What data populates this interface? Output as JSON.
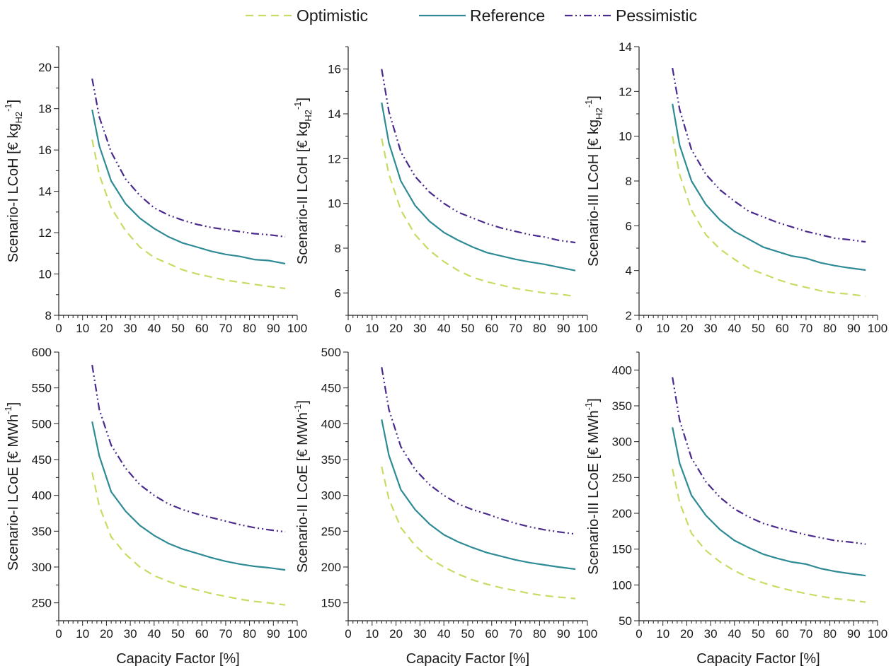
{
  "legend": {
    "position": "top-center",
    "items": [
      {
        "name": "Optimistic",
        "color": "#c6dc62",
        "dash": "dashed"
      },
      {
        "name": "Reference",
        "color": "#2e8b96",
        "dash": "solid"
      },
      {
        "name": "Pessimistic",
        "color": "#4a2a8c",
        "dash": "dash-dot-dot"
      }
    ]
  },
  "x_label_bottom": "Capacity Factor [%]",
  "chart_data": [
    {
      "type": "line",
      "title": "",
      "ylabel": {
        "main": "Scenario-I LCoH [€ kg",
        "sub": "H2",
        "sup": "-1",
        "close": "]"
      },
      "xlabel": "",
      "xlim": [
        0,
        100
      ],
      "xticks": [
        0,
        10,
        20,
        30,
        40,
        50,
        60,
        70,
        80,
        90,
        100
      ],
      "ylim": [
        8,
        21
      ],
      "yticks": [
        8,
        10,
        12,
        14,
        16,
        18,
        20
      ],
      "x": [
        14,
        17,
        22,
        28,
        34,
        40,
        46,
        52,
        58,
        64,
        70,
        76,
        82,
        88,
        95
      ],
      "series": [
        {
          "name": "Optimistic",
          "values": [
            16.5,
            14.8,
            13.2,
            12.1,
            11.3,
            10.8,
            10.5,
            10.2,
            10.0,
            9.85,
            9.7,
            9.6,
            9.5,
            9.4,
            9.3
          ]
        },
        {
          "name": "Reference",
          "values": [
            17.95,
            16.2,
            14.5,
            13.4,
            12.7,
            12.2,
            11.8,
            11.5,
            11.3,
            11.1,
            10.95,
            10.85,
            10.7,
            10.65,
            10.5
          ]
        },
        {
          "name": "Pessimistic",
          "values": [
            19.45,
            17.6,
            15.9,
            14.6,
            13.8,
            13.2,
            12.85,
            12.6,
            12.4,
            12.25,
            12.15,
            12.05,
            11.95,
            11.9,
            11.8
          ]
        }
      ]
    },
    {
      "type": "line",
      "title": "",
      "ylabel": {
        "main": "Scenario-II  LCoH [€ kg",
        "sub": "H2",
        "sup": "-1",
        "close": "]"
      },
      "xlabel": "",
      "xlim": [
        0,
        100
      ],
      "xticks": [
        0,
        10,
        20,
        30,
        40,
        50,
        60,
        70,
        80,
        90,
        100
      ],
      "ylim": [
        5,
        17
      ],
      "yticks": [
        6,
        8,
        10,
        12,
        14,
        16
      ],
      "x": [
        14,
        17,
        22,
        28,
        34,
        40,
        46,
        52,
        58,
        64,
        70,
        76,
        82,
        88,
        95
      ],
      "series": [
        {
          "name": "Optimistic",
          "values": [
            12.9,
            11.3,
            9.7,
            8.6,
            7.9,
            7.4,
            7.0,
            6.7,
            6.5,
            6.35,
            6.2,
            6.1,
            6.0,
            5.95,
            5.85
          ]
        },
        {
          "name": "Reference",
          "values": [
            14.5,
            12.7,
            11.0,
            9.9,
            9.2,
            8.7,
            8.35,
            8.05,
            7.8,
            7.65,
            7.5,
            7.38,
            7.28,
            7.15,
            7.0
          ]
        },
        {
          "name": "Pessimistic",
          "values": [
            16.0,
            14.1,
            12.3,
            11.2,
            10.5,
            10.0,
            9.6,
            9.35,
            9.1,
            8.9,
            8.75,
            8.6,
            8.5,
            8.35,
            8.25
          ]
        }
      ]
    },
    {
      "type": "line",
      "title": "",
      "ylabel": {
        "main": "Scenario-III LCoH [€ kg",
        "sub": "H2",
        "sup": "-1",
        "close": "]"
      },
      "xlabel": "",
      "xlim": [
        0,
        100
      ],
      "xticks": [
        0,
        10,
        20,
        30,
        40,
        50,
        60,
        70,
        80,
        90,
        100
      ],
      "ylim": [
        2,
        14
      ],
      "yticks": [
        2,
        4,
        6,
        8,
        10,
        12,
        14
      ],
      "x": [
        14,
        17,
        22,
        28,
        34,
        40,
        46,
        52,
        58,
        64,
        70,
        76,
        82,
        88,
        95
      ],
      "series": [
        {
          "name": "Optimistic",
          "values": [
            10.0,
            8.3,
            6.7,
            5.6,
            4.95,
            4.5,
            4.1,
            3.85,
            3.6,
            3.4,
            3.25,
            3.1,
            3.0,
            2.95,
            2.85
          ]
        },
        {
          "name": "Reference",
          "values": [
            11.45,
            9.6,
            8.0,
            6.95,
            6.25,
            5.75,
            5.4,
            5.05,
            4.85,
            4.65,
            4.55,
            4.35,
            4.22,
            4.12,
            4.02
          ]
        },
        {
          "name": "Pessimistic",
          "values": [
            13.05,
            11.2,
            9.4,
            8.3,
            7.6,
            7.1,
            6.65,
            6.4,
            6.15,
            5.95,
            5.75,
            5.6,
            5.45,
            5.38,
            5.28
          ]
        }
      ]
    },
    {
      "type": "line",
      "title": "",
      "ylabel": {
        "main": "Scenario-I LCoE [€ MWh",
        "sub": "",
        "sup": "-1",
        "close": "]"
      },
      "xlabel": "Capacity Factor [%]",
      "xlim": [
        0,
        100
      ],
      "xticks": [
        0,
        10,
        20,
        30,
        40,
        50,
        60,
        70,
        80,
        90,
        100
      ],
      "ylim": [
        225,
        600
      ],
      "yticks": [
        250,
        300,
        350,
        400,
        450,
        500,
        550,
        600
      ],
      "x": [
        14,
        17,
        22,
        28,
        34,
        40,
        46,
        52,
        58,
        64,
        70,
        76,
        82,
        88,
        95
      ],
      "series": [
        {
          "name": "Optimistic",
          "values": [
            432,
            385,
            342,
            318,
            300,
            288,
            280,
            273,
            268,
            263,
            259,
            255,
            252,
            250,
            247
          ]
        },
        {
          "name": "Reference",
          "values": [
            503,
            455,
            405,
            378,
            358,
            344,
            333,
            325,
            319,
            313,
            308,
            304,
            301,
            299,
            296
          ]
        },
        {
          "name": "Pessimistic",
          "values": [
            582,
            520,
            470,
            438,
            415,
            400,
            388,
            380,
            374,
            369,
            364,
            359,
            355,
            352,
            349
          ]
        }
      ]
    },
    {
      "type": "line",
      "title": "",
      "ylabel": {
        "main": "Scenario-II LCoE [€ MWh",
        "sub": "",
        "sup": "-1",
        "close": "]"
      },
      "xlabel": "Capacity Factor [%]",
      "xlim": [
        0,
        100
      ],
      "xticks": [
        0,
        10,
        20,
        30,
        40,
        50,
        60,
        70,
        80,
        90,
        100
      ],
      "ylim": [
        125,
        500
      ],
      "yticks": [
        150,
        200,
        250,
        300,
        350,
        400,
        450,
        500
      ],
      "x": [
        14,
        17,
        22,
        28,
        34,
        40,
        46,
        52,
        58,
        64,
        70,
        76,
        82,
        88,
        95
      ],
      "series": [
        {
          "name": "Optimistic",
          "values": [
            340,
            295,
            255,
            230,
            212,
            200,
            190,
            182,
            176,
            171,
            167,
            163,
            160,
            158,
            156
          ]
        },
        {
          "name": "Reference",
          "values": [
            406,
            356,
            308,
            280,
            260,
            245,
            235,
            227,
            220,
            215,
            210,
            206,
            203,
            200,
            197
          ]
        },
        {
          "name": "Pessimistic",
          "values": [
            479,
            420,
            368,
            336,
            315,
            300,
            288,
            280,
            274,
            267,
            261,
            256,
            252,
            249,
            246
          ]
        }
      ]
    },
    {
      "type": "line",
      "title": "",
      "ylabel": {
        "main": "Scenario-III LCoE [€ MWh",
        "sub": "",
        "sup": "-1",
        "close": "]"
      },
      "xlabel": "Capacity Factor [%]",
      "xlim": [
        0,
        100
      ],
      "xticks": [
        0,
        10,
        20,
        30,
        40,
        50,
        60,
        70,
        80,
        90,
        100
      ],
      "ylim": [
        50,
        425
      ],
      "yticks": [
        50,
        100,
        150,
        200,
        250,
        300,
        350,
        400
      ],
      "x": [
        14,
        17,
        22,
        28,
        34,
        40,
        46,
        52,
        58,
        64,
        70,
        76,
        82,
        88,
        95
      ],
      "series": [
        {
          "name": "Optimistic",
          "values": [
            262,
            215,
            172,
            148,
            132,
            120,
            110,
            103,
            97,
            92,
            88,
            84,
            81,
            79,
            76
          ]
        },
        {
          "name": "Reference",
          "values": [
            320,
            270,
            225,
            197,
            177,
            162,
            152,
            143,
            137,
            132,
            129,
            123,
            119,
            116,
            113
          ]
        },
        {
          "name": "Pessimistic",
          "values": [
            390,
            330,
            277,
            244,
            222,
            206,
            195,
            186,
            180,
            175,
            170,
            166,
            162,
            160,
            157
          ]
        }
      ]
    }
  ]
}
